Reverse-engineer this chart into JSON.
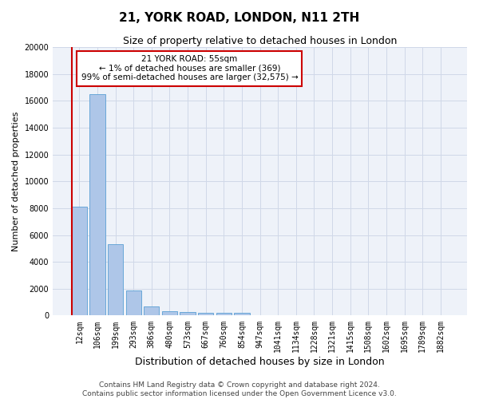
{
  "title": "21, YORK ROAD, LONDON, N11 2TH",
  "subtitle": "Size of property relative to detached houses in London",
  "xlabel": "Distribution of detached houses by size in London",
  "ylabel": "Number of detached properties",
  "categories": [
    "12sqm",
    "106sqm",
    "199sqm",
    "293sqm",
    "386sqm",
    "480sqm",
    "573sqm",
    "667sqm",
    "760sqm",
    "854sqm",
    "947sqm",
    "1041sqm",
    "1134sqm",
    "1228sqm",
    "1321sqm",
    "1415sqm",
    "1508sqm",
    "1602sqm",
    "1695sqm",
    "1789sqm",
    "1882sqm"
  ],
  "values": [
    8100,
    16500,
    5300,
    1850,
    700,
    350,
    280,
    210,
    200,
    185,
    0,
    0,
    0,
    0,
    0,
    0,
    0,
    0,
    0,
    0,
    0
  ],
  "bar_color": "#aec6e8",
  "bar_edgecolor": "#5a9fd4",
  "ylim": [
    0,
    20000
  ],
  "yticks": [
    0,
    2000,
    4000,
    6000,
    8000,
    10000,
    12000,
    14000,
    16000,
    18000,
    20000
  ],
  "annotation_box_text": "21 YORK ROAD: 55sqm\n← 1% of detached houses are smaller (369)\n99% of semi-detached houses are larger (32,575) →",
  "annotation_box_color": "#ffffff",
  "annotation_box_edgecolor": "#cc0000",
  "vline_color": "#cc0000",
  "grid_color": "#d0d8e8",
  "background_color": "#eef2f9",
  "footer_line1": "Contains HM Land Registry data © Crown copyright and database right 2024.",
  "footer_line2": "Contains public sector information licensed under the Open Government Licence v3.0.",
  "title_fontsize": 11,
  "subtitle_fontsize": 9,
  "xlabel_fontsize": 9,
  "ylabel_fontsize": 8,
  "tick_fontsize": 7,
  "annotation_fontsize": 7.5,
  "footer_fontsize": 6.5
}
